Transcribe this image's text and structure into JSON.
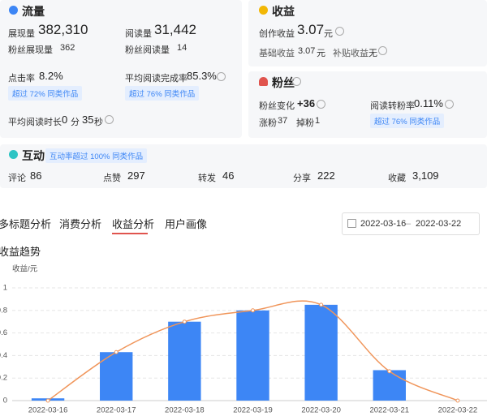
{
  "traffic": {
    "title": "流量",
    "impressions": {
      "label": "展现量",
      "value": "382,310"
    },
    "reads": {
      "label": "阅读量",
      "value": "31,442"
    },
    "fan_impressions": {
      "label": "粉丝展现量",
      "value": "362"
    },
    "fan_reads": {
      "label": "粉丝阅读量",
      "value": "14"
    },
    "ctr": {
      "label": "点击率",
      "value": "8.2%",
      "badge": "超过 72% 同类作品"
    },
    "completion": {
      "label": "平均阅读完成率",
      "value": "85.3%",
      "badge": "超过 76% 同类作品"
    },
    "avg_read_time": {
      "label": "平均阅读时长",
      "minutes": "0",
      "minutes_unit": "分",
      "seconds": "35",
      "seconds_unit": "秒"
    }
  },
  "income": {
    "title": "收益",
    "creation": {
      "label": "创作收益",
      "value": "3.07",
      "unit": "元"
    },
    "base": {
      "label": "基础收益",
      "value": "3.07",
      "unit": "元"
    },
    "subsidy": {
      "label": "补贴收益",
      "value": "无"
    }
  },
  "fans": {
    "title": "粉丝",
    "change": {
      "label": "粉丝变化",
      "value": "+36"
    },
    "conversion": {
      "label": "阅读转粉率",
      "value": "0.11%",
      "badge": "超过 76% 同类作品"
    },
    "gained": {
      "label": "涨粉",
      "value": "37"
    },
    "lost": {
      "label": "掉粉",
      "value": "1"
    }
  },
  "interaction": {
    "title": "互动",
    "badge": "互动率超过 100% 同类作品",
    "items": [
      {
        "label": "评论",
        "value": "86"
      },
      {
        "label": "点赞",
        "value": "297"
      },
      {
        "label": "转发",
        "value": "46"
      },
      {
        "label": "分享",
        "value": "222"
      },
      {
        "label": "收藏",
        "value": "3,109"
      }
    ]
  },
  "tabs": [
    "多标题分析",
    "消费分析",
    "收益分析",
    "用户画像"
  ],
  "active_tab": 2,
  "date_range": {
    "start": "2022-03-16",
    "separator": "–",
    "end": "2022-03-22"
  },
  "section_title": "收益趋势",
  "chart_data": {
    "type": "bar",
    "y_label": "收益/元",
    "categories": [
      "2022-03-16",
      "2022-03-17",
      "2022-03-18",
      "2022-03-19",
      "2022-03-20",
      "2022-03-21",
      "2022-03-22"
    ],
    "series": [
      {
        "type": "bar",
        "color": "#3d86f5",
        "values": [
          0.02,
          0.43,
          0.7,
          0.8,
          0.85,
          0.27,
          0
        ]
      },
      {
        "type": "line",
        "color": "#f0955a",
        "values": [
          0,
          0.43,
          0.7,
          0.8,
          0.85,
          0.26,
          0
        ]
      }
    ],
    "ylim": [
      0,
      1
    ],
    "yticks": [
      0,
      0.2,
      0.4,
      0.6,
      0.8,
      1
    ],
    "grid": true
  }
}
